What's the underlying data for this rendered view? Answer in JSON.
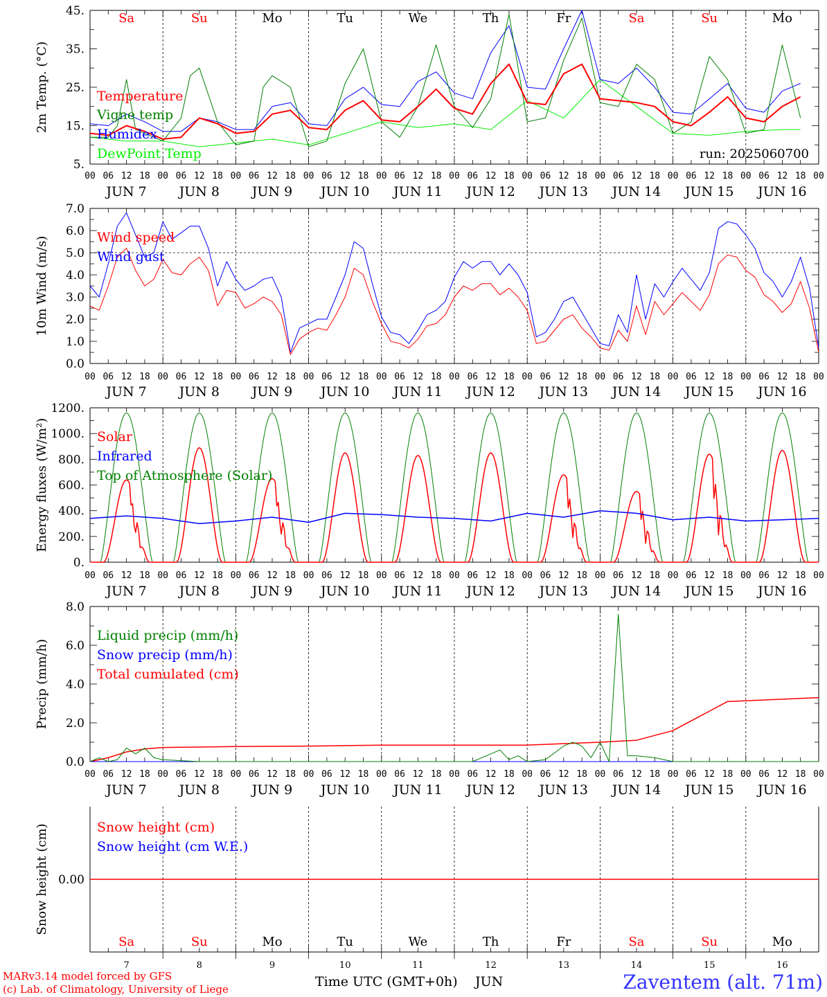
{
  "run_label": "run: 2025060700",
  "day_abbrevs": [
    "Sa",
    "Su",
    "Mo",
    "Tu",
    "We",
    "Th",
    "Fr",
    "Sa",
    "Su",
    "Mo"
  ],
  "weekend_flags": [
    true,
    true,
    false,
    false,
    false,
    false,
    false,
    true,
    true,
    false
  ],
  "date_labels": [
    "JUN  7",
    "JUN  8",
    "JUN  9",
    "JUN 10",
    "JUN 11",
    "JUN 12",
    "JUN 13",
    "JUN 14",
    "JUN 15",
    "JUN 16"
  ],
  "hour_ticks": [
    "00",
    "06",
    "12",
    "18"
  ],
  "bottom_day_numbers": [
    "7",
    "8",
    "9",
    "10",
    "11",
    "12",
    "13",
    "14",
    "15",
    "16"
  ],
  "footer": {
    "credit_line1": "MARv3.14 model forced by GFS",
    "credit_line2": "(c) Lab. of Climatology, University of Liege",
    "axis_title": "Time UTC (GMT+0h)",
    "month": "JUN",
    "station": "Zaventem (alt. 71m)"
  },
  "colors": {
    "red": "#ff0000",
    "green": "#007f00",
    "blue": "#0000ff",
    "lightgreen": "#00ee00",
    "weekend": "#ff0000",
    "axis": "#000000"
  },
  "chart_data": [
    {
      "type": "line",
      "ylabel": "2m Temp. (°C)",
      "ylim": [
        5,
        45
      ],
      "yticks": [
        {
          "v": 5,
          "t": "5."
        },
        {
          "v": 15,
          "t": "15."
        },
        {
          "v": 25,
          "t": "25."
        },
        {
          "v": 35,
          "t": "35."
        },
        {
          "v": 45,
          "t": "45."
        }
      ],
      "grid": "vertical dashed at day boundaries",
      "x_units": "hours since 2025-06-07 00 UTC",
      "series": [
        {
          "name": "Temperature",
          "color": "red",
          "width": 2,
          "x": [
            0,
            6,
            12,
            18,
            24,
            30,
            36,
            42,
            48,
            54,
            60,
            66,
            72,
            78,
            84,
            90,
            96,
            102,
            108,
            114,
            120,
            126,
            132,
            138,
            144,
            150,
            156,
            162,
            168,
            174,
            180,
            186,
            192,
            198,
            204,
            210,
            216,
            222,
            228,
            234
          ],
          "y": [
            13,
            12.5,
            15,
            13.5,
            11.5,
            12,
            17,
            15.5,
            13,
            13.5,
            18,
            19,
            14.5,
            14,
            19,
            21.5,
            16.5,
            16,
            20,
            24.5,
            19.5,
            18,
            26,
            31,
            21,
            20.5,
            28.5,
            31,
            22,
            21.5,
            21,
            20,
            16,
            15,
            18.5,
            22.5,
            17,
            16,
            20,
            22.5
          ]
        },
        {
          "name": "Vigne temp",
          "color": "green",
          "width": 1,
          "x": [
            0,
            6,
            9,
            12,
            15,
            18,
            24,
            30,
            33,
            36,
            42,
            48,
            54,
            57,
            60,
            66,
            72,
            78,
            84,
            90,
            96,
            102,
            108,
            114,
            120,
            126,
            132,
            138,
            144,
            150,
            156,
            162,
            168,
            174,
            180,
            186,
            192,
            198,
            204,
            210,
            216,
            222,
            228,
            234
          ],
          "y": [
            12,
            12,
            15,
            27,
            14,
            13,
            11,
            17,
            28,
            30,
            16,
            10,
            11,
            25,
            28,
            25,
            9.5,
            11,
            26,
            35,
            16,
            12,
            20,
            36,
            20,
            14.5,
            22,
            44,
            16,
            17,
            32,
            43,
            21,
            20,
            31,
            27,
            13,
            16,
            33,
            27,
            13,
            14,
            36,
            17
          ]
        },
        {
          "name": "Humidex",
          "color": "blue",
          "width": 1,
          "x": [
            0,
            6,
            12,
            18,
            24,
            30,
            36,
            42,
            48,
            54,
            60,
            66,
            72,
            78,
            84,
            90,
            96,
            102,
            108,
            114,
            120,
            126,
            132,
            138,
            144,
            150,
            156,
            162,
            168,
            174,
            180,
            186,
            192,
            198,
            204,
            210,
            216,
            222,
            228,
            234
          ],
          "y": [
            15.5,
            15,
            18,
            16,
            13.5,
            13.5,
            17,
            16,
            14,
            14,
            20,
            21,
            15.5,
            15,
            22,
            25,
            20.5,
            20,
            26.5,
            29,
            23.5,
            22,
            34,
            41,
            25,
            24.5,
            35,
            45,
            27,
            26,
            30,
            25,
            18.5,
            18,
            22,
            26,
            19.5,
            18.5,
            24,
            26
          ]
        },
        {
          "name": "DewPoint Temp",
          "color": "lightgreen",
          "width": 1,
          "x": [
            0,
            12,
            24,
            36,
            48,
            60,
            72,
            84,
            96,
            108,
            120,
            132,
            144,
            156,
            168,
            180,
            192,
            204,
            216,
            228,
            234
          ],
          "y": [
            12,
            11,
            11,
            9.5,
            10.5,
            11.5,
            10,
            13,
            16,
            14.5,
            15.5,
            14,
            21.5,
            17,
            27,
            20,
            13,
            12.5,
            13.5,
            14,
            14
          ]
        }
      ]
    },
    {
      "type": "line",
      "ylabel": "10m Wind (m/s)",
      "ylim": [
        0,
        7
      ],
      "yticks": [
        {
          "v": 0,
          "t": "0.0"
        },
        {
          "v": 1,
          "t": "1.0"
        },
        {
          "v": 2,
          "t": "2.0"
        },
        {
          "v": 3,
          "t": "3.0"
        },
        {
          "v": 4,
          "t": "4.0"
        },
        {
          "v": 5,
          "t": "5.0"
        },
        {
          "v": 6,
          "t": "6.0"
        },
        {
          "v": 7,
          "t": "7.0"
        }
      ],
      "hline": 5,
      "x_units": "hours since 2025-06-07 00 UTC",
      "series": [
        {
          "name": "Wind speed",
          "color": "red",
          "width": 1,
          "x": [
            0,
            3,
            6,
            9,
            12,
            15,
            18,
            21,
            24,
            27,
            30,
            33,
            36,
            39,
            42,
            45,
            48,
            51,
            54,
            57,
            60,
            63,
            66,
            69,
            72,
            75,
            78,
            81,
            84,
            87,
            90,
            93,
            96,
            99,
            102,
            105,
            108,
            111,
            114,
            117,
            120,
            123,
            126,
            129,
            132,
            135,
            138,
            141,
            144,
            147,
            150,
            153,
            156,
            159,
            162,
            165,
            168,
            171,
            174,
            177,
            180,
            183,
            186,
            189,
            192,
            195,
            198,
            201,
            204,
            207,
            210,
            213,
            216,
            219,
            222,
            225,
            228,
            231,
            234,
            237,
            240
          ],
          "y": [
            2.6,
            2.4,
            3.5,
            4.8,
            5.2,
            4.2,
            3.5,
            3.8,
            4.7,
            4.1,
            4,
            4.5,
            4.8,
            4.2,
            2.6,
            3.3,
            3.2,
            2.5,
            2.7,
            3,
            2.8,
            2.2,
            0.4,
            1.1,
            1.4,
            1.6,
            1.5,
            2.2,
            3,
            4.3,
            4,
            2.8,
            1.8,
            1,
            0.9,
            0.7,
            1.1,
            1.7,
            1.8,
            2.2,
            3,
            3.5,
            3.3,
            3.6,
            3.6,
            3.1,
            3.4,
            3,
            2.4,
            0.9,
            1,
            1.5,
            2,
            2.2,
            1.6,
            1.2,
            0.7,
            0.6,
            1.5,
            1,
            2.6,
            1.3,
            2.8,
            2.2,
            2.7,
            3.2,
            2.8,
            2.4,
            3.1,
            4.5,
            4.9,
            4.8,
            4.2,
            3.9,
            3.1,
            2.8,
            2.3,
            2.7,
            3.7,
            2.5,
            0.5
          ]
        },
        {
          "name": "Wind gust",
          "color": "blue",
          "width": 1,
          "x": [
            0,
            3,
            6,
            9,
            12,
            15,
            18,
            21,
            24,
            27,
            30,
            33,
            36,
            39,
            42,
            45,
            48,
            51,
            54,
            57,
            60,
            63,
            66,
            69,
            72,
            75,
            78,
            81,
            84,
            87,
            90,
            93,
            96,
            99,
            102,
            105,
            108,
            111,
            114,
            117,
            120,
            123,
            126,
            129,
            132,
            135,
            138,
            141,
            144,
            147,
            150,
            153,
            156,
            159,
            162,
            165,
            168,
            171,
            174,
            177,
            180,
            183,
            186,
            189,
            192,
            195,
            198,
            201,
            204,
            207,
            210,
            213,
            216,
            219,
            222,
            225,
            228,
            231,
            234,
            237,
            240
          ],
          "y": [
            3.5,
            3,
            4.5,
            6.2,
            6.8,
            5.8,
            4.8,
            5,
            6.4,
            5.6,
            5.9,
            6.2,
            6.2,
            5.2,
            3.5,
            4.6,
            3.8,
            3.3,
            3.5,
            3.8,
            3.9,
            3,
            0.5,
            1.6,
            1.8,
            2,
            2,
            3,
            4,
            5.5,
            5.2,
            3.6,
            2.1,
            1.4,
            1.3,
            0.9,
            1.5,
            2.2,
            2.4,
            2.8,
            3.9,
            4.6,
            4.3,
            4.6,
            4.6,
            4,
            4.5,
            4,
            3.2,
            1.2,
            1.4,
            2,
            2.8,
            3,
            2.3,
            1.6,
            0.9,
            0.8,
            2.2,
            1.4,
            4,
            2,
            3.6,
            3,
            3.7,
            4.3,
            3.8,
            3.3,
            4.1,
            6.1,
            6.4,
            6.3,
            5.8,
            5.2,
            4.1,
            3.7,
            3,
            3.7,
            4.8,
            3.4,
            0.7
          ]
        }
      ]
    },
    {
      "type": "line",
      "ylabel": "Energy fluxes (W/m²)",
      "ylim": [
        0,
        1200
      ],
      "yticks": [
        {
          "v": 0,
          "t": "0."
        },
        {
          "v": 200,
          "t": "200."
        },
        {
          "v": 400,
          "t": "400."
        },
        {
          "v": 600,
          "t": "600."
        },
        {
          "v": 800,
          "t": "800."
        },
        {
          "v": 1000,
          "t": "1000."
        },
        {
          "v": 1200,
          "t": "1200."
        }
      ],
      "x_units": "hours since 2025-06-07 00 UTC",
      "toa_peak": 1160,
      "solar_day_peaks": [
        640,
        890,
        650,
        850,
        830,
        850,
        680,
        550,
        840,
        870
      ],
      "series": [
        {
          "name": "Solar",
          "color": "red",
          "width": 1.5
        },
        {
          "name": "Infrared",
          "color": "blue",
          "width": 1.5,
          "x": [
            0,
            12,
            24,
            36,
            48,
            60,
            72,
            84,
            96,
            108,
            120,
            132,
            144,
            156,
            168,
            180,
            192,
            204,
            216,
            228,
            240
          ],
          "y": [
            340,
            360,
            340,
            300,
            320,
            350,
            310,
            380,
            370,
            350,
            340,
            320,
            380,
            350,
            400,
            380,
            330,
            350,
            320,
            330,
            340
          ]
        },
        {
          "name": "Top of Atmosphere (Solar)",
          "color": "green",
          "width": 1
        }
      ]
    },
    {
      "type": "line",
      "ylabel": "Precip (mm/h)",
      "ylim": [
        0,
        8
      ],
      "yticks": [
        {
          "v": 0,
          "t": "0.0"
        },
        {
          "v": 2,
          "t": "2.0"
        },
        {
          "v": 4,
          "t": "4.0"
        },
        {
          "v": 6,
          "t": "6.0"
        },
        {
          "v": 8,
          "t": "8.0"
        }
      ],
      "x_units": "hours since 2025-06-07 00 UTC",
      "series": [
        {
          "name": "Liquid precip (mm/h)",
          "color": "green",
          "width": 1,
          "x": [
            0,
            3,
            6,
            9,
            12,
            15,
            18,
            21,
            24,
            30,
            36,
            120,
            126,
            132,
            135,
            138,
            141,
            144,
            150,
            156,
            159,
            162,
            165,
            168,
            171,
            174,
            177,
            180,
            186,
            192,
            240
          ],
          "y": [
            0,
            0.2,
            0,
            0.1,
            0.7,
            0.4,
            0.7,
            0.2,
            0.1,
            0.05,
            0,
            0,
            0,
            0.4,
            0.6,
            0.1,
            0.3,
            0,
            0.1,
            0.8,
            1,
            0.8,
            0.2,
            1,
            0,
            7.6,
            0.3,
            0.3,
            0.2,
            0,
            0
          ]
        },
        {
          "name": "Snow precip (mm/h)",
          "color": "blue",
          "width": 1,
          "x": [
            0,
            240
          ],
          "y": [
            0,
            0
          ]
        },
        {
          "name": "Total cumulated (cm)",
          "color": "red",
          "width": 1.5,
          "x": [
            0,
            6,
            12,
            18,
            24,
            36,
            48,
            72,
            96,
            120,
            144,
            168,
            180,
            192,
            210,
            240
          ],
          "y": [
            0,
            0.2,
            0.5,
            0.65,
            0.73,
            0.75,
            0.78,
            0.8,
            0.85,
            0.85,
            0.85,
            1.0,
            1.1,
            1.6,
            3.1,
            3.3
          ]
        }
      ]
    },
    {
      "type": "line",
      "ylabel": "Snow height (cm)",
      "yticks": [
        {
          "v": 0,
          "t": "0.00"
        }
      ],
      "x_units": "hours since 2025-06-07 00 UTC",
      "series": [
        {
          "name": "Snow height (cm)",
          "color": "red",
          "width": 1.5,
          "x": [
            0,
            240
          ],
          "y": [
            0,
            0
          ]
        },
        {
          "name": "Snow height (cm W.E.)",
          "color": "blue",
          "width": 1,
          "x": [
            0,
            240
          ],
          "y": [
            0,
            0
          ]
        }
      ]
    }
  ]
}
